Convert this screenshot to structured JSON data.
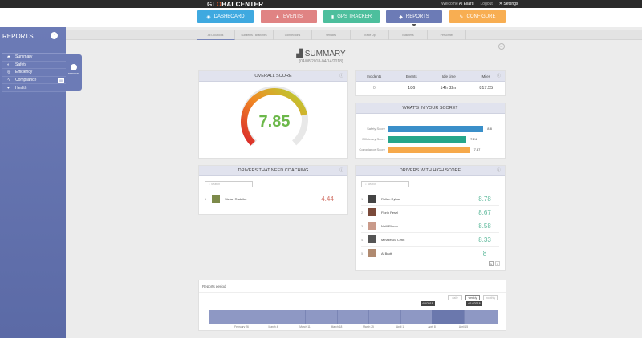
{
  "header": {
    "logo": "GL",
    "logo_b": "BALCENTER",
    "logo_o": "O",
    "welcome": "Welcome",
    "user": "Al Eliard",
    "logout": "Logout",
    "settings": "Settings"
  },
  "nav": [
    {
      "label": "DASHBOARD",
      "icon": "dashboard-icon",
      "color": "#3fa9e0"
    },
    {
      "label": "EVENTS",
      "icon": "warning-icon",
      "color": "#e08383"
    },
    {
      "label": "GPS TRACKER",
      "icon": "pin-icon",
      "color": "#4dbf9d"
    },
    {
      "label": "REPORTS",
      "icon": "chart-icon",
      "color": "#6c7bb6"
    },
    {
      "label": "CONFIGURE",
      "icon": "wrench-icon",
      "color": "#f8ae52"
    }
  ],
  "sidebar": {
    "title": "REPORTS",
    "items": [
      {
        "label": "Summary",
        "icon": "▰"
      },
      {
        "label": "Safety",
        "icon": "◐"
      },
      {
        "label": "Efficiency",
        "icon": "◎"
      },
      {
        "label": "Compliance",
        "icon": "∿"
      },
      {
        "label": "Health",
        "icon": "♥"
      }
    ],
    "fly_label": "REPORTS"
  },
  "tabs": [
    "All Locations",
    "Subfleets / Branches",
    "Connections",
    "Vehicles",
    "Trade Up",
    "Business",
    "Personnel"
  ],
  "page": {
    "title": "SUMMARY",
    "range": "(04/08/2018-04/14/2018)"
  },
  "overall": {
    "title": "OVERALL SCORE",
    "value": "7.85",
    "fraction": 0.785
  },
  "stats": {
    "headers": [
      "Incidents",
      "Events",
      "Idle time",
      "Miles"
    ],
    "values": [
      "0",
      "186",
      "14h 32m",
      "817.55"
    ]
  },
  "score_breakdown": {
    "title": "WHAT'S IN YOUR SCORE?",
    "items": [
      {
        "label": "Safety Score",
        "value": "8.8",
        "v": 8.8,
        "color": "#3a8fc9"
      },
      {
        "label": "Efficiency Score",
        "value": "7.24",
        "v": 7.24,
        "color": "#26a68a"
      },
      {
        "label": "Compliance Score",
        "value": "7.57",
        "v": 7.57,
        "color": "#f6a94b"
      }
    ]
  },
  "coaching": {
    "title": "DRIVERS THAT NEED COACHING",
    "search_placeholder": "Search",
    "rows": [
      {
        "rank": "1",
        "name": "Stefan Radeiko",
        "score": "4.44"
      }
    ]
  },
  "high": {
    "title": "DRIVERS WITH HIGH SCORE",
    "search_placeholder": "Search",
    "rows": [
      {
        "rank": "1",
        "name": "Rollan Rybas",
        "score": "8.78"
      },
      {
        "rank": "2",
        "name": "Florin Pesel",
        "score": "8.67"
      },
      {
        "rank": "3",
        "name": "Neill Ellison",
        "score": "8.58"
      },
      {
        "rank": "4",
        "name": "Mihailescu Cetin",
        "score": "8.33"
      },
      {
        "rank": "5",
        "name": "Al Brutti",
        "score": "8"
      }
    ],
    "pages": [
      "1",
      "2"
    ]
  },
  "period": {
    "title": "Reports period",
    "buttons": [
      "daily",
      "weekly",
      "monthly"
    ],
    "active": "weekly",
    "ticks": [
      "February 26",
      "March 4",
      "March 11",
      "March 18",
      "March 25",
      "April 1",
      "April 8",
      "April 15"
    ],
    "start": "4/8/2018",
    "end": "4/14/2018"
  }
}
